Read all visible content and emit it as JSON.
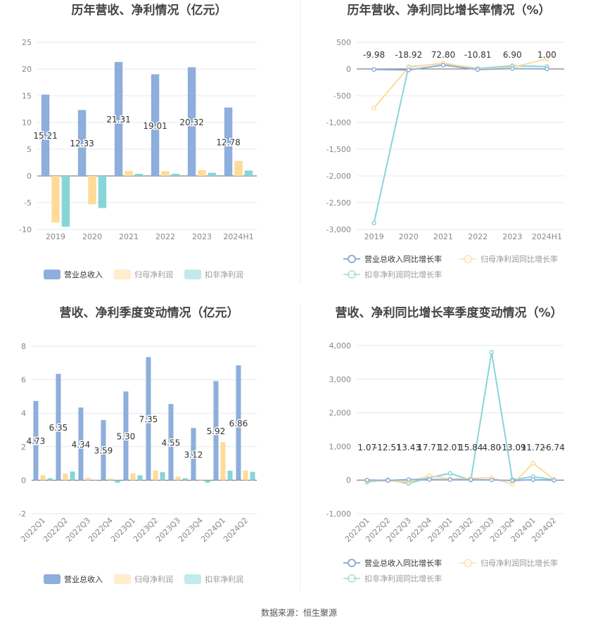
{
  "source": "数据来源：恒生聚源",
  "colors": {
    "revenue": "#8eaedb",
    "parent": "#ffdb9a",
    "deducted": "#87d5d8",
    "grid": "#e3e8f3"
  },
  "chart_data": [
    {
      "type": "bar",
      "title": "历年营收、净利情况（亿元）",
      "categories": [
        "2019",
        "2020",
        "2021",
        "2022",
        "2023",
        "2024H1"
      ],
      "ylim": [
        -10,
        25
      ],
      "yticks": [
        -10,
        -5,
        0,
        5,
        10,
        15,
        20,
        25
      ],
      "legend_position": "bottom",
      "series": [
        {
          "name": "营业总收入",
          "values": [
            15.21,
            12.33,
            21.31,
            19.01,
            20.32,
            12.78
          ],
          "labels": [
            "15.21",
            "12.33",
            "21.31",
            "19.01",
            "20.32",
            "12.78"
          ]
        },
        {
          "name": "归母净利润",
          "values": [
            -8.7,
            -5.3,
            0.9,
            0.9,
            1.1,
            2.8
          ]
        },
        {
          "name": "扣非净利润",
          "values": [
            -9.5,
            -6.0,
            0.4,
            0.4,
            0.6,
            1.0
          ]
        }
      ]
    },
    {
      "type": "line",
      "title": "历年营收、净利同比增长率情况（%）",
      "categories": [
        "2019",
        "2020",
        "2021",
        "2022",
        "2023",
        "2024H1"
      ],
      "ylim": [
        -3000,
        500
      ],
      "yticks": [
        -3000,
        -2500,
        -2000,
        -1500,
        -1000,
        -500,
        0,
        500
      ],
      "ytick_labels": [
        "-3,000",
        "-2,500",
        "-2,000",
        "-1,500",
        "-1,000",
        "-500",
        "0",
        "500"
      ],
      "legend_position": "bottom",
      "series": [
        {
          "name": "营业总收入同比增长率",
          "values": [
            -9.98,
            -18.92,
            72.8,
            -10.81,
            6.9,
            1.0
          ],
          "labels": [
            "-9.98",
            "-18.92",
            "72.80",
            "-10.81",
            "6.90",
            "1.00"
          ]
        },
        {
          "name": "归母净利润同比增长率",
          "values": [
            -730,
            30,
            110,
            0,
            30,
            190
          ]
        },
        {
          "name": "扣非净利润同比增长率",
          "values": [
            -2880,
            40,
            100,
            10,
            60,
            45
          ]
        }
      ]
    },
    {
      "type": "bar",
      "title": "营收、净利季度变动情况（亿元）",
      "categories": [
        "2022Q1",
        "2022Q2",
        "2022Q3",
        "2022Q4",
        "2023Q1",
        "2023Q2",
        "2023Q3",
        "2023Q4",
        "2024Q1",
        "2024Q2"
      ],
      "ylim": [
        -2,
        8
      ],
      "yticks": [
        -2,
        0,
        2,
        4,
        6,
        8
      ],
      "legend_position": "bottom",
      "series": [
        {
          "name": "营业总收入",
          "values": [
            4.73,
            6.35,
            4.34,
            3.59,
            5.3,
            7.35,
            4.55,
            3.12,
            5.92,
            6.86
          ],
          "labels": [
            "4.73",
            "6.35",
            "4.34",
            "3.59",
            "5.30",
            "7.35",
            "4.55",
            "3.12",
            "5.92",
            "6.86"
          ]
        },
        {
          "name": "归母净利润",
          "values": [
            0.3,
            0.4,
            0.15,
            0.1,
            0.4,
            0.58,
            0.22,
            0.05,
            2.27,
            0.58
          ]
        },
        {
          "name": "扣非净利润",
          "values": [
            0.12,
            0.52,
            0,
            -0.15,
            0.3,
            0.48,
            0.12,
            -0.15,
            0.57,
            0.5
          ]
        }
      ]
    },
    {
      "type": "line",
      "title": "营收、净利同比增长率季度变动情况（%）",
      "categories": [
        "2022Q1",
        "2022Q2",
        "2022Q3",
        "2022Q4",
        "2023Q1",
        "2023Q2",
        "2023Q3",
        "2023Q4",
        "2024Q1",
        "2024Q2"
      ],
      "ylim": [
        -1000,
        4000
      ],
      "yticks": [
        -1000,
        0,
        1000,
        2000,
        3000,
        4000
      ],
      "ytick_labels": [
        "-1,000",
        "0",
        "1,000",
        "2,000",
        "3,000",
        "4,000"
      ],
      "legend_position": "bottom",
      "series": [
        {
          "name": "营业总收入同比增长率",
          "values": [
            1.07,
            -12.51,
            13.43,
            17.71,
            12.01,
            15.84,
            4.8,
            -13.09,
            11.72,
            -6.74
          ],
          "labels": [
            "1.07",
            "-12.51",
            "13.43",
            "17.71",
            "12.01",
            "15.84",
            "4.80",
            "-13.09",
            "11.72",
            "-6.74"
          ]
        },
        {
          "name": "归母净利润同比增长率",
          "values": [
            -20,
            -20,
            -50,
            130,
            30,
            50,
            70,
            -130,
            500,
            20
          ]
        },
        {
          "name": "扣非净利润同比增长率",
          "values": [
            -60,
            10,
            -100,
            70,
            200,
            0,
            3800,
            10,
            100,
            10
          ]
        }
      ]
    }
  ]
}
